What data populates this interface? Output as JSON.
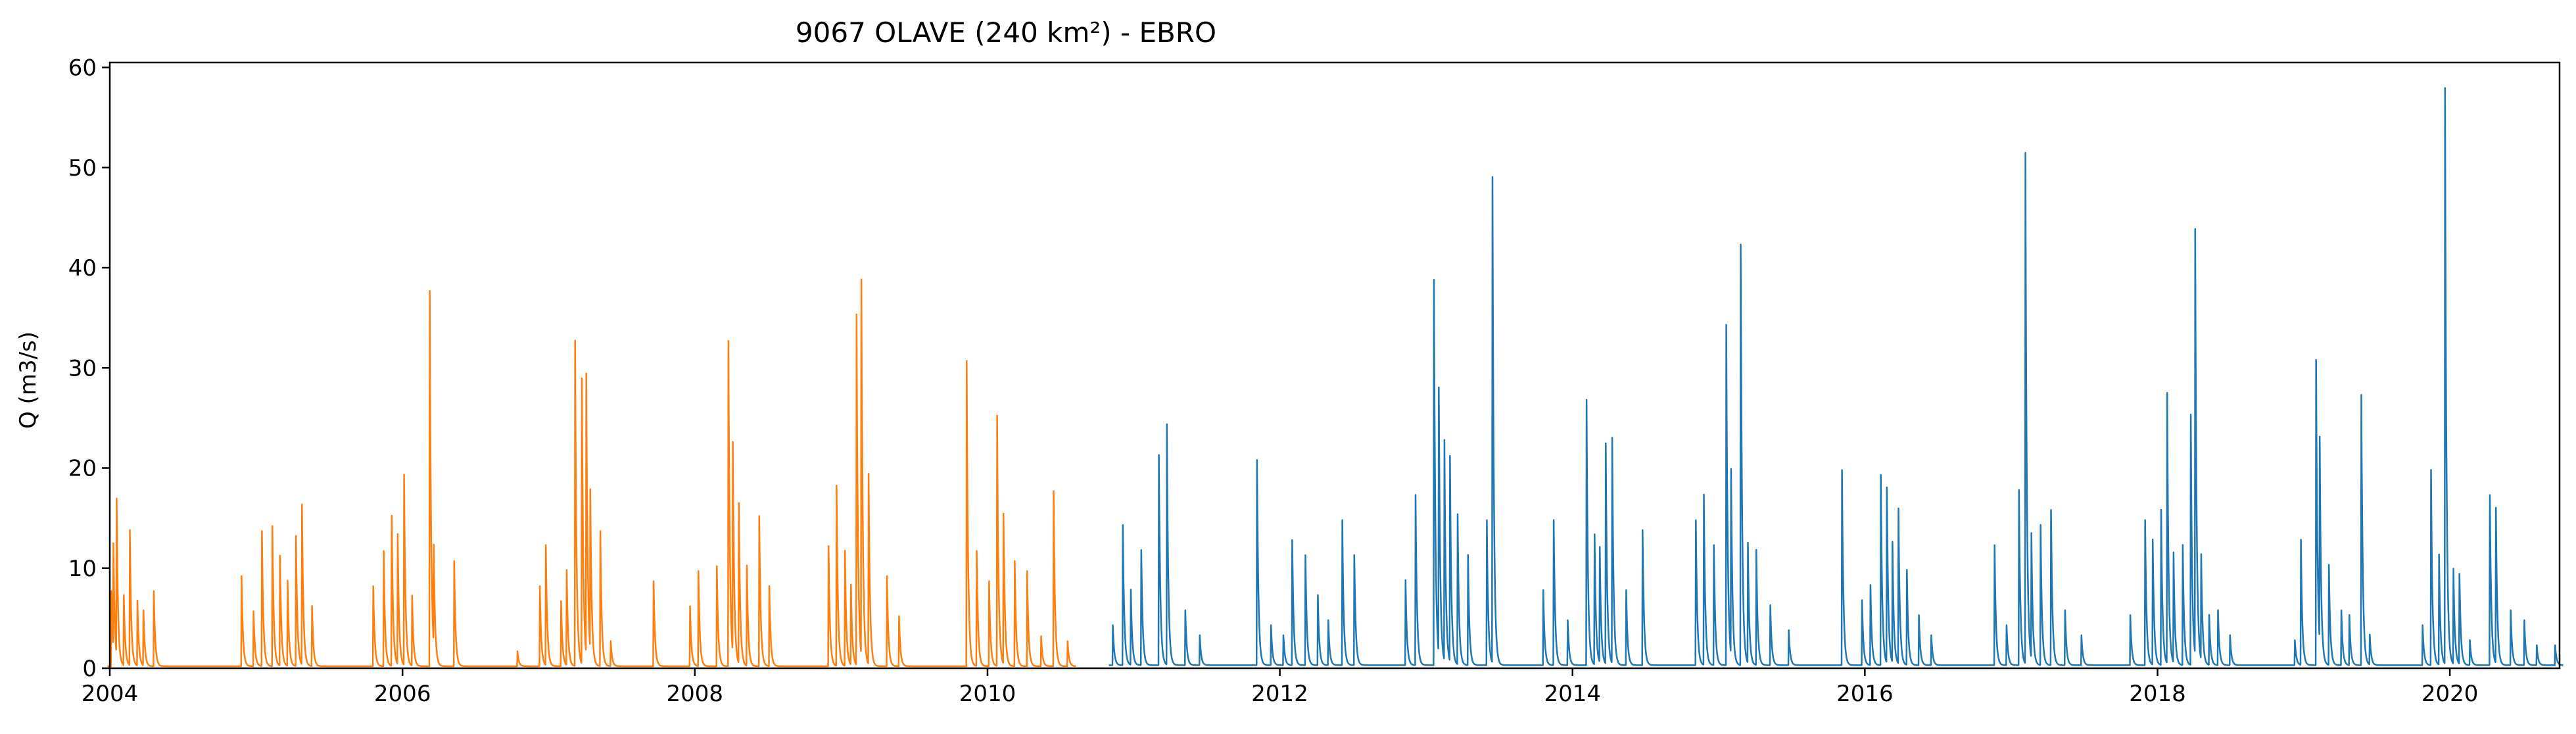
{
  "chart_data": {
    "type": "line",
    "title": "9067 OLAVE (240 km²) - EBRO",
    "xlabel": "",
    "ylabel": "Q (m3/s)",
    "xlim": [
      "2004-01-01",
      "2020-10-01"
    ],
    "ylim": [
      0,
      60.5
    ],
    "x_ticks": [
      "2004",
      "2006",
      "2008",
      "2010",
      "2012",
      "2014",
      "2016",
      "2018",
      "2020"
    ],
    "y_ticks": [
      0,
      10,
      20,
      30,
      40,
      50,
      60
    ],
    "grid": false,
    "series": [
      {
        "color": "#ff7f0e",
        "baseline": 0.2,
        "peaks": [
          [
            "2004-01-05",
            7.5
          ],
          [
            "2004-01-10",
            10.5
          ],
          [
            "2004-01-18",
            15.5
          ],
          [
            "2004-02-05",
            7.0
          ],
          [
            "2004-02-20",
            13.5
          ],
          [
            "2004-03-10",
            6.5
          ],
          [
            "2004-03-25",
            5.5
          ],
          [
            "2004-04-20",
            7.5
          ],
          [
            "2004-11-25",
            9.0
          ],
          [
            "2004-12-25",
            5.5
          ],
          [
            "2005-01-15",
            13.5
          ],
          [
            "2005-02-10",
            14.0
          ],
          [
            "2005-03-01",
            11.0
          ],
          [
            "2005-03-20",
            8.5
          ],
          [
            "2005-04-10",
            13.0
          ],
          [
            "2005-04-25",
            16.0
          ],
          [
            "2005-05-20",
            6.0
          ],
          [
            "2005-10-20",
            8.0
          ],
          [
            "2005-11-15",
            11.5
          ],
          [
            "2005-12-05",
            15.0
          ],
          [
            "2005-12-20",
            13.0
          ],
          [
            "2006-01-05",
            19.0
          ],
          [
            "2006-01-25",
            7.0
          ],
          [
            "2006-03-10",
            37.5
          ],
          [
            "2006-03-20",
            10.0
          ],
          [
            "2006-05-10",
            10.5
          ],
          [
            "2006-10-15",
            1.5
          ],
          [
            "2006-12-10",
            8.0
          ],
          [
            "2006-12-25",
            12.0
          ],
          [
            "2007-02-01",
            6.5
          ],
          [
            "2007-02-15",
            9.5
          ],
          [
            "2007-03-08",
            32.5
          ],
          [
            "2007-03-25",
            28.5
          ],
          [
            "2007-04-05",
            28.0
          ],
          [
            "2007-04-15",
            16.0
          ],
          [
            "2007-05-10",
            13.5
          ],
          [
            "2007-06-05",
            2.5
          ],
          [
            "2007-09-20",
            8.5
          ],
          [
            "2007-12-20",
            6.0
          ],
          [
            "2008-01-10",
            9.5
          ],
          [
            "2008-02-25",
            10.0
          ],
          [
            "2008-03-25",
            32.5
          ],
          [
            "2008-04-05",
            21.0
          ],
          [
            "2008-04-20",
            16.0
          ],
          [
            "2008-05-10",
            10.0
          ],
          [
            "2008-06-10",
            15.0
          ],
          [
            "2008-07-05",
            8.0
          ],
          [
            "2008-11-30",
            12.0
          ],
          [
            "2008-12-20",
            18.0
          ],
          [
            "2009-01-10",
            11.5
          ],
          [
            "2009-01-25",
            8.0
          ],
          [
            "2009-02-08",
            35.0
          ],
          [
            "2009-02-20",
            37.5
          ],
          [
            "2009-03-10",
            19.0
          ],
          [
            "2009-04-25",
            9.0
          ],
          [
            "2009-05-25",
            5.0
          ],
          [
            "2009-11-10",
            30.5
          ],
          [
            "2009-12-05",
            11.5
          ],
          [
            "2010-01-05",
            8.5
          ],
          [
            "2010-01-25",
            25.0
          ],
          [
            "2010-02-10",
            15.0
          ],
          [
            "2010-03-10",
            10.5
          ],
          [
            "2010-04-10",
            9.5
          ],
          [
            "2010-05-15",
            3.0
          ],
          [
            "2010-06-15",
            17.5
          ],
          [
            "2010-07-20",
            2.5
          ]
        ]
      },
      {
        "color": "#1f77b4",
        "baseline": 0.3,
        "peaks": [
          [
            "2010-11-10",
            4.0
          ],
          [
            "2010-12-05",
            14.0
          ],
          [
            "2010-12-25",
            7.5
          ],
          [
            "2011-01-20",
            11.5
          ],
          [
            "2011-03-05",
            21.0
          ],
          [
            "2011-03-25",
            24.0
          ],
          [
            "2011-05-10",
            5.5
          ],
          [
            "2011-06-15",
            3.0
          ],
          [
            "2011-11-05",
            20.5
          ],
          [
            "2011-12-10",
            4.0
          ],
          [
            "2012-01-10",
            3.0
          ],
          [
            "2012-02-01",
            12.5
          ],
          [
            "2012-03-05",
            11.0
          ],
          [
            "2012-04-05",
            7.0
          ],
          [
            "2012-05-01",
            4.5
          ],
          [
            "2012-06-05",
            14.5
          ],
          [
            "2012-07-05",
            11.0
          ],
          [
            "2012-11-10",
            8.5
          ],
          [
            "2012-12-05",
            17.0
          ],
          [
            "2013-01-20",
            38.5
          ],
          [
            "2013-02-01",
            26.5
          ],
          [
            "2013-02-15",
            22.0
          ],
          [
            "2013-03-01",
            20.5
          ],
          [
            "2013-03-20",
            15.0
          ],
          [
            "2013-04-15",
            11.0
          ],
          [
            "2013-06-01",
            14.5
          ],
          [
            "2013-06-15",
            48.5
          ],
          [
            "2013-10-20",
            7.5
          ],
          [
            "2013-11-15",
            14.5
          ],
          [
            "2013-12-20",
            4.5
          ],
          [
            "2014-02-05",
            26.5
          ],
          [
            "2014-02-25",
            13.0
          ],
          [
            "2014-03-10",
            11.5
          ],
          [
            "2014-03-25",
            22.0
          ],
          [
            "2014-04-10",
            22.5
          ],
          [
            "2014-05-15",
            7.5
          ],
          [
            "2014-06-25",
            13.5
          ],
          [
            "2014-11-05",
            14.5
          ],
          [
            "2014-11-25",
            17.0
          ],
          [
            "2014-12-20",
            12.0
          ],
          [
            "2015-01-20",
            34.0
          ],
          [
            "2015-02-01",
            18.5
          ],
          [
            "2015-02-25",
            42.0
          ],
          [
            "2015-03-15",
            12.0
          ],
          [
            "2015-04-05",
            11.5
          ],
          [
            "2015-05-10",
            6.0
          ],
          [
            "2015-06-25",
            3.5
          ],
          [
            "2015-11-05",
            19.5
          ],
          [
            "2015-12-25",
            6.5
          ],
          [
            "2016-01-15",
            8.0
          ],
          [
            "2016-02-10",
            19.0
          ],
          [
            "2016-02-25",
            17.5
          ],
          [
            "2016-03-10",
            12.0
          ],
          [
            "2016-03-25",
            15.5
          ],
          [
            "2016-04-15",
            9.5
          ],
          [
            "2016-05-15",
            5.0
          ],
          [
            "2016-06-15",
            3.0
          ],
          [
            "2016-11-20",
            12.0
          ],
          [
            "2016-12-20",
            4.0
          ],
          [
            "2017-01-20",
            17.5
          ],
          [
            "2017-02-05",
            51.0
          ],
          [
            "2017-02-20",
            12.5
          ],
          [
            "2017-03-15",
            14.0
          ],
          [
            "2017-04-10",
            15.5
          ],
          [
            "2017-05-15",
            5.5
          ],
          [
            "2017-06-25",
            3.0
          ],
          [
            "2017-10-25",
            5.0
          ],
          [
            "2017-12-01",
            14.5
          ],
          [
            "2017-12-20",
            12.5
          ],
          [
            "2018-01-10",
            15.5
          ],
          [
            "2018-01-25",
            27.0
          ],
          [
            "2018-02-10",
            11.0
          ],
          [
            "2018-03-05",
            12.0
          ],
          [
            "2018-03-25",
            25.0
          ],
          [
            "2018-04-05",
            42.5
          ],
          [
            "2018-04-20",
            10.5
          ],
          [
            "2018-05-10",
            5.0
          ],
          [
            "2018-06-01",
            5.5
          ],
          [
            "2018-07-01",
            3.0
          ],
          [
            "2018-12-10",
            2.5
          ],
          [
            "2018-12-25",
            12.5
          ],
          [
            "2019-02-01",
            30.5
          ],
          [
            "2019-02-10",
            20.5
          ],
          [
            "2019-03-05",
            10.0
          ],
          [
            "2019-04-05",
            5.5
          ],
          [
            "2019-04-25",
            5.0
          ],
          [
            "2019-05-25",
            27.0
          ],
          [
            "2019-06-15",
            3.0
          ],
          [
            "2019-10-25",
            4.0
          ],
          [
            "2019-11-15",
            19.5
          ],
          [
            "2019-12-05",
            11.0
          ],
          [
            "2019-12-20",
            57.5
          ],
          [
            "2020-01-10",
            9.5
          ],
          [
            "2020-01-25",
            9.0
          ],
          [
            "2020-02-20",
            2.5
          ],
          [
            "2020-04-10",
            17.0
          ],
          [
            "2020-04-25",
            15.5
          ],
          [
            "2020-06-01",
            5.5
          ],
          [
            "2020-07-05",
            4.5
          ],
          [
            "2020-08-05",
            2.0
          ],
          [
            "2020-09-20",
            2.0
          ]
        ]
      }
    ]
  }
}
